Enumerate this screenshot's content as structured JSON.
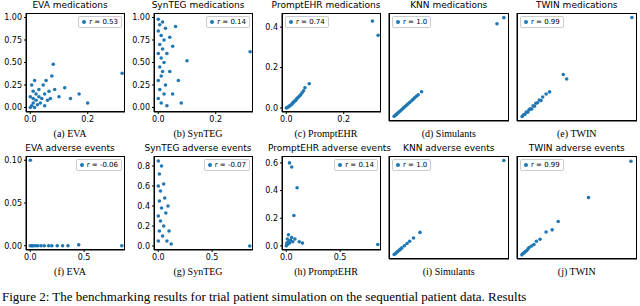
{
  "figure_caption": "Figure 2: The benchmarking results for trial patient simulation on the sequential patient data. Results",
  "chart_data": [
    {
      "type": "scatter",
      "title": "EVA medications",
      "caption": "(a) EVA",
      "legend": "upper right",
      "xlim": [
        -0.015,
        0.33
      ],
      "ylim": [
        -0.05,
        1.05
      ],
      "xticks": [
        {
          "value": 0,
          "label": "0.0"
        },
        0.2
      ],
      "yticks": [
        {
          "value": 0,
          "label": "0.00"
        },
        0.25,
        {
          "value": 0.5,
          "label": "0.50"
        },
        0.75,
        {
          "value": 1,
          "label": "1.00"
        }
      ],
      "series": [
        {
          "name": "r = 0.53",
          "color": "#1f77b4",
          "x": [
            0,
            0.005,
            0.01,
            0.01,
            0.015,
            0.02,
            0.02,
            0.025,
            0.03,
            0.03,
            0.035,
            0.04,
            0.045,
            0.05,
            0.05,
            0.055,
            0.06,
            0.065,
            0.07,
            0.075,
            0.08,
            0.085,
            0.1,
            0.12,
            0.14,
            0.17,
            0.2,
            0.32,
            0,
            0.005,
            0.01,
            0.015
          ],
          "values": [
            0,
            0.02,
            0.05,
            0.1,
            0,
            0.08,
            0.15,
            0.03,
            0.12,
            0.2,
            0.05,
            0.1,
            0.25,
            0.02,
            0.15,
            0.3,
            0.08,
            0.18,
            0.1,
            0.35,
            0.48,
            0.2,
            0.12,
            0.22,
            0.1,
            0.15,
            0.05,
            0.38,
            0.12,
            0.25,
            0.18,
            0.3
          ]
        }
      ]
    },
    {
      "type": "scatter",
      "title": "SynTEG medications",
      "caption": "(b) SynTEG",
      "legend": "upper right",
      "xlim": [
        -0.015,
        0.33
      ],
      "ylim": [
        -0.05,
        1.05
      ],
      "xticks": [
        {
          "value": 0,
          "label": "0.0"
        },
        0.2
      ],
      "yticks": [
        {
          "value": 0,
          "label": "0.00"
        },
        0.25,
        {
          "value": 0.5,
          "label": "0.50"
        },
        0.75,
        {
          "value": 1,
          "label": "1.00"
        }
      ],
      "series": [
        {
          "name": "r = 0.14",
          "color": "#1f77b4",
          "x": [
            0,
            0,
            0,
            0,
            0,
            0.005,
            0.005,
            0.005,
            0.005,
            0.01,
            0.01,
            0.01,
            0.01,
            0.015,
            0.015,
            0.015,
            0.02,
            0.02,
            0.02,
            0.025,
            0.025,
            0.03,
            0.03,
            0.04,
            0.04,
            0.05,
            0.05,
            0.06,
            0.07,
            0.08,
            0.1,
            0.32
          ],
          "values": [
            0.98,
            0.85,
            0.6,
            0.3,
            0.1,
            0.92,
            0.7,
            0.45,
            0.2,
            0.8,
            0.55,
            0.35,
            0.05,
            0.95,
            0.65,
            0.4,
            0.75,
            0.5,
            0.15,
            0.88,
            0.25,
            0.6,
            0.02,
            0.78,
            0.4,
            0.68,
            0.15,
            0.9,
            0.3,
            0.05,
            0.52,
            0.62
          ]
        }
      ]
    },
    {
      "type": "scatter",
      "title": "PromptEHR medications",
      "caption": "(c) PromptEHR",
      "legend": "upper left",
      "xlim": [
        -0.015,
        0.33
      ],
      "ylim": [
        -0.02,
        0.47
      ],
      "xticks": [
        {
          "value": 0,
          "label": "0.0"
        },
        0.2
      ],
      "yticks": [
        {
          "value": 0,
          "label": "0.0"
        },
        0.2,
        0.4
      ],
      "series": [
        {
          "name": "r = 0.74",
          "color": "#1f77b4",
          "x": [
            0,
            0.003,
            0.006,
            0.01,
            0.013,
            0.016,
            0.02,
            0.023,
            0.026,
            0.03,
            0.033,
            0.036,
            0.04,
            0.045,
            0.05,
            0.055,
            0.06,
            0.065,
            0.08,
            0.3,
            0.32
          ],
          "values": [
            0,
            0.002,
            0.005,
            0.008,
            0.012,
            0.015,
            0.02,
            0.025,
            0.03,
            0.035,
            0.038,
            0.045,
            0.05,
            0.058,
            0.065,
            0.075,
            0.085,
            0.1,
            0.12,
            0.43,
            0.36
          ]
        }
      ]
    },
    {
      "type": "scatter",
      "title": "KNN medications",
      "caption": "(d) Simulants",
      "legend": "upper left",
      "tick_labels": false,
      "xlim": [
        -0.015,
        0.335
      ],
      "ylim": [
        -0.015,
        0.335
      ],
      "series": [
        {
          "name": "r = 1.0",
          "color": "#1f77b4",
          "x": [
            0,
            0.004,
            0.008,
            0.012,
            0.016,
            0.02,
            0.024,
            0.028,
            0.032,
            0.036,
            0.04,
            0.045,
            0.05,
            0.055,
            0.06,
            0.065,
            0.07,
            0.08,
            0.3,
            0.32
          ],
          "values": [
            0,
            0.004,
            0.008,
            0.012,
            0.016,
            0.02,
            0.024,
            0.028,
            0.032,
            0.036,
            0.04,
            0.045,
            0.05,
            0.055,
            0.06,
            0.065,
            0.07,
            0.08,
            0.3,
            0.32
          ]
        }
      ]
    },
    {
      "type": "scatter",
      "title": "TWIN medications",
      "caption": "(e) TWIN",
      "legend": "upper left",
      "tick_labels": false,
      "xlim": [
        -0.015,
        0.335
      ],
      "ylim": [
        -0.015,
        0.345
      ],
      "series": [
        {
          "name": "r = 0.99",
          "color": "#1f77b4",
          "x": [
            0,
            0.004,
            0.008,
            0.012,
            0.016,
            0.02,
            0.024,
            0.028,
            0.032,
            0.036,
            0.04,
            0.045,
            0.05,
            0.055,
            0.06,
            0.07,
            0.08,
            0.12,
            0.13,
            0.32
          ],
          "values": [
            0,
            0.006,
            0.007,
            0.015,
            0.014,
            0.022,
            0.026,
            0.025,
            0.036,
            0.034,
            0.044,
            0.046,
            0.055,
            0.053,
            0.065,
            0.075,
            0.082,
            0.14,
            0.125,
            0.33
          ]
        }
      ]
    },
    {
      "type": "scatter",
      "title": "EVA adverse events",
      "caption": "(f) EVA",
      "legend": "upper right",
      "xlim": [
        -0.04,
        0.88
      ],
      "ylim": [
        -0.005,
        0.105
      ],
      "xticks": [
        {
          "value": 0,
          "label": "0.0"
        },
        0.5
      ],
      "yticks": [
        {
          "value": 0,
          "label": "0.00"
        },
        0.05,
        {
          "value": 0.1,
          "label": "0.10"
        }
      ],
      "series": [
        {
          "name": "r = -0.06",
          "color": "#1f77b4",
          "x": [
            0,
            0,
            0.01,
            0.02,
            0.03,
            0.05,
            0.07,
            0.1,
            0.13,
            0.17,
            0.2,
            0.25,
            0.3,
            0.35,
            0.45,
            0.85
          ],
          "values": [
            0.1,
            0,
            0,
            0,
            0,
            0,
            0,
            0,
            0,
            0,
            0,
            0,
            0,
            0,
            0.001,
            0
          ]
        }
      ]
    },
    {
      "type": "scatter",
      "title": "SynTEG adverse events",
      "caption": "(g) SynTEG",
      "legend": "upper right",
      "xlim": [
        -0.04,
        0.88
      ],
      "ylim": [
        -0.04,
        0.9
      ],
      "xticks": [
        {
          "value": 0,
          "label": "0.0"
        },
        0.5
      ],
      "yticks": [
        {
          "value": 0,
          "label": "0.0"
        },
        0.2,
        0.4,
        0.6,
        0.8
      ],
      "series": [
        {
          "name": "r = -0.07",
          "color": "#1f77b4",
          "x": [
            0,
            0,
            0,
            0,
            0.01,
            0.01,
            0.01,
            0.02,
            0.02,
            0.03,
            0.03,
            0.04,
            0.05,
            0.05,
            0.06,
            0.07,
            0.08,
            0.09,
            0.1,
            0.12,
            0.85
          ],
          "values": [
            0.85,
            0.6,
            0.3,
            0.05,
            0.72,
            0.45,
            0.15,
            0.55,
            0.25,
            0.8,
            0.38,
            0.1,
            0.62,
            0.2,
            0.48,
            0.33,
            0.05,
            0.4,
            0.15,
            0.02,
            0
          ]
        }
      ]
    },
    {
      "type": "scatter",
      "title": "PromptEHR adverse events",
      "caption": "(h) PromptEHR",
      "legend": "upper right",
      "xlim": [
        -0.04,
        0.88
      ],
      "ylim": [
        -0.03,
        0.65
      ],
      "xticks": [
        {
          "value": 0,
          "label": "0.0"
        },
        0.5
      ],
      "yticks": [
        {
          "value": 0,
          "label": "0.0"
        },
        0.2,
        0.4,
        0.6
      ],
      "series": [
        {
          "name": "r = 0.14",
          "color": "#1f77b4",
          "x": [
            0,
            0.005,
            0.01,
            0.01,
            0.02,
            0.02,
            0.03,
            0.03,
            0.04,
            0.05,
            0.05,
            0.06,
            0.07,
            0.08,
            0.1,
            0.12,
            0.15,
            0.85
          ],
          "values": [
            0,
            0.02,
            0.01,
            0.05,
            0.03,
            0.08,
            0.6,
            0.02,
            0.04,
            0.57,
            0.06,
            0.03,
            0.22,
            0.05,
            0.42,
            0.03,
            0.02,
            0.01
          ]
        }
      ]
    },
    {
      "type": "scatter",
      "title": "KNN adverse events",
      "caption": "(i) Simulants",
      "legend": "upper left",
      "tick_labels": false,
      "xlim": [
        -0.04,
        0.89
      ],
      "ylim": [
        -0.04,
        0.89
      ],
      "series": [
        {
          "name": "r = 1.0",
          "color": "#1f77b4",
          "x": [
            0,
            0.01,
            0.02,
            0.03,
            0.04,
            0.05,
            0.06,
            0.08,
            0.1,
            0.12,
            0.15,
            0.2,
            0.85
          ],
          "values": [
            0,
            0.01,
            0.02,
            0.03,
            0.04,
            0.05,
            0.06,
            0.08,
            0.1,
            0.12,
            0.15,
            0.2,
            0.85
          ]
        }
      ]
    },
    {
      "type": "scatter",
      "title": "TWIN adverse events",
      "caption": "(j) TWIN",
      "legend": "upper left",
      "tick_labels": false,
      "xlim": [
        -0.04,
        0.95
      ],
      "ylim": [
        -0.04,
        0.95
      ],
      "series": [
        {
          "name": "r = 0.99",
          "color": "#1f77b4",
          "x": [
            0,
            0.01,
            0.02,
            0.03,
            0.04,
            0.05,
            0.06,
            0.08,
            0.1,
            0.12,
            0.15,
            0.2,
            0.25,
            0.3,
            0.55,
            0.9
          ],
          "values": [
            0,
            0.015,
            0.02,
            0.035,
            0.04,
            0.055,
            0.07,
            0.085,
            0.1,
            0.13,
            0.15,
            0.22,
            0.24,
            0.32,
            0.55,
            0.9
          ]
        }
      ]
    }
  ]
}
